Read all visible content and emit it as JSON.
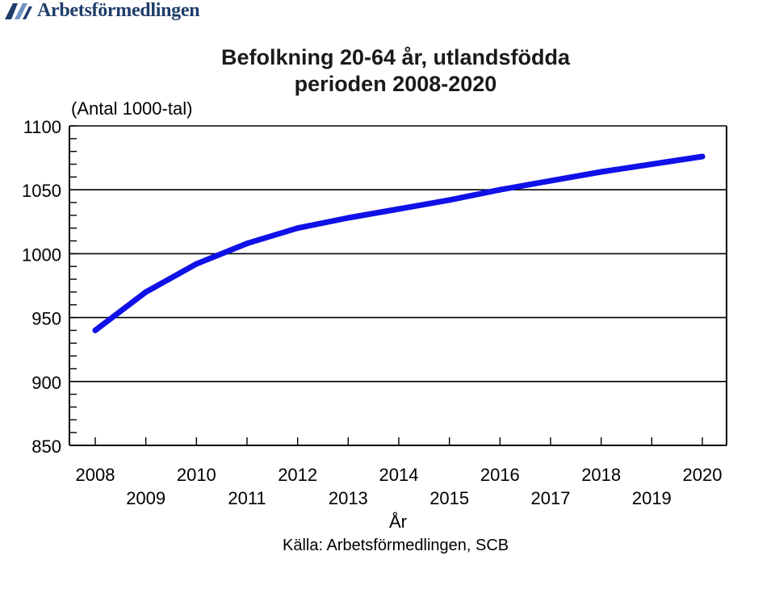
{
  "logo": {
    "text": "Arbetsförmedlingen",
    "icon": "arbetsformedlingen-logo-icon"
  },
  "title_line1": "Befolkning 20-64 år, utlandsfödda",
  "title_line2": "perioden 2008-2020",
  "unit_label": "(Antal 1000-tal)",
  "source": "Källa: Arbetsförmedlingen, SCB",
  "colors": {
    "line": "#1010e8",
    "axis": "#000000",
    "logo": "#1f3d6b"
  },
  "chart_data": {
    "type": "line",
    "title": "Befolkning 20-64 år, utlandsfödda perioden 2008-2020",
    "xlabel": "År",
    "ylabel": "(Antal 1000-tal)",
    "ylim": [
      850,
      1100
    ],
    "yticks": [
      850,
      900,
      950,
      1000,
      1050,
      1100
    ],
    "ytick_labels": [
      "850",
      "900",
      "950",
      "1000",
      "1050",
      "1100"
    ],
    "xlim": [
      2008,
      2020
    ],
    "xtick_labels": [
      "2008",
      "2009",
      "2010",
      "2011",
      "2012",
      "2013",
      "2014",
      "2015",
      "2016",
      "2017",
      "2018",
      "2019",
      "2020"
    ],
    "grid": "horizontal",
    "series": [
      {
        "x": [
          2008,
          2009,
          2010,
          2011,
          2012,
          2013,
          2014,
          2015,
          2016,
          2017,
          2018,
          2019,
          2020
        ],
        "values": [
          940,
          970,
          992,
          1008,
          1020,
          1028,
          1035,
          1042,
          1050,
          1057,
          1064,
          1070,
          1076
        ]
      }
    ]
  }
}
